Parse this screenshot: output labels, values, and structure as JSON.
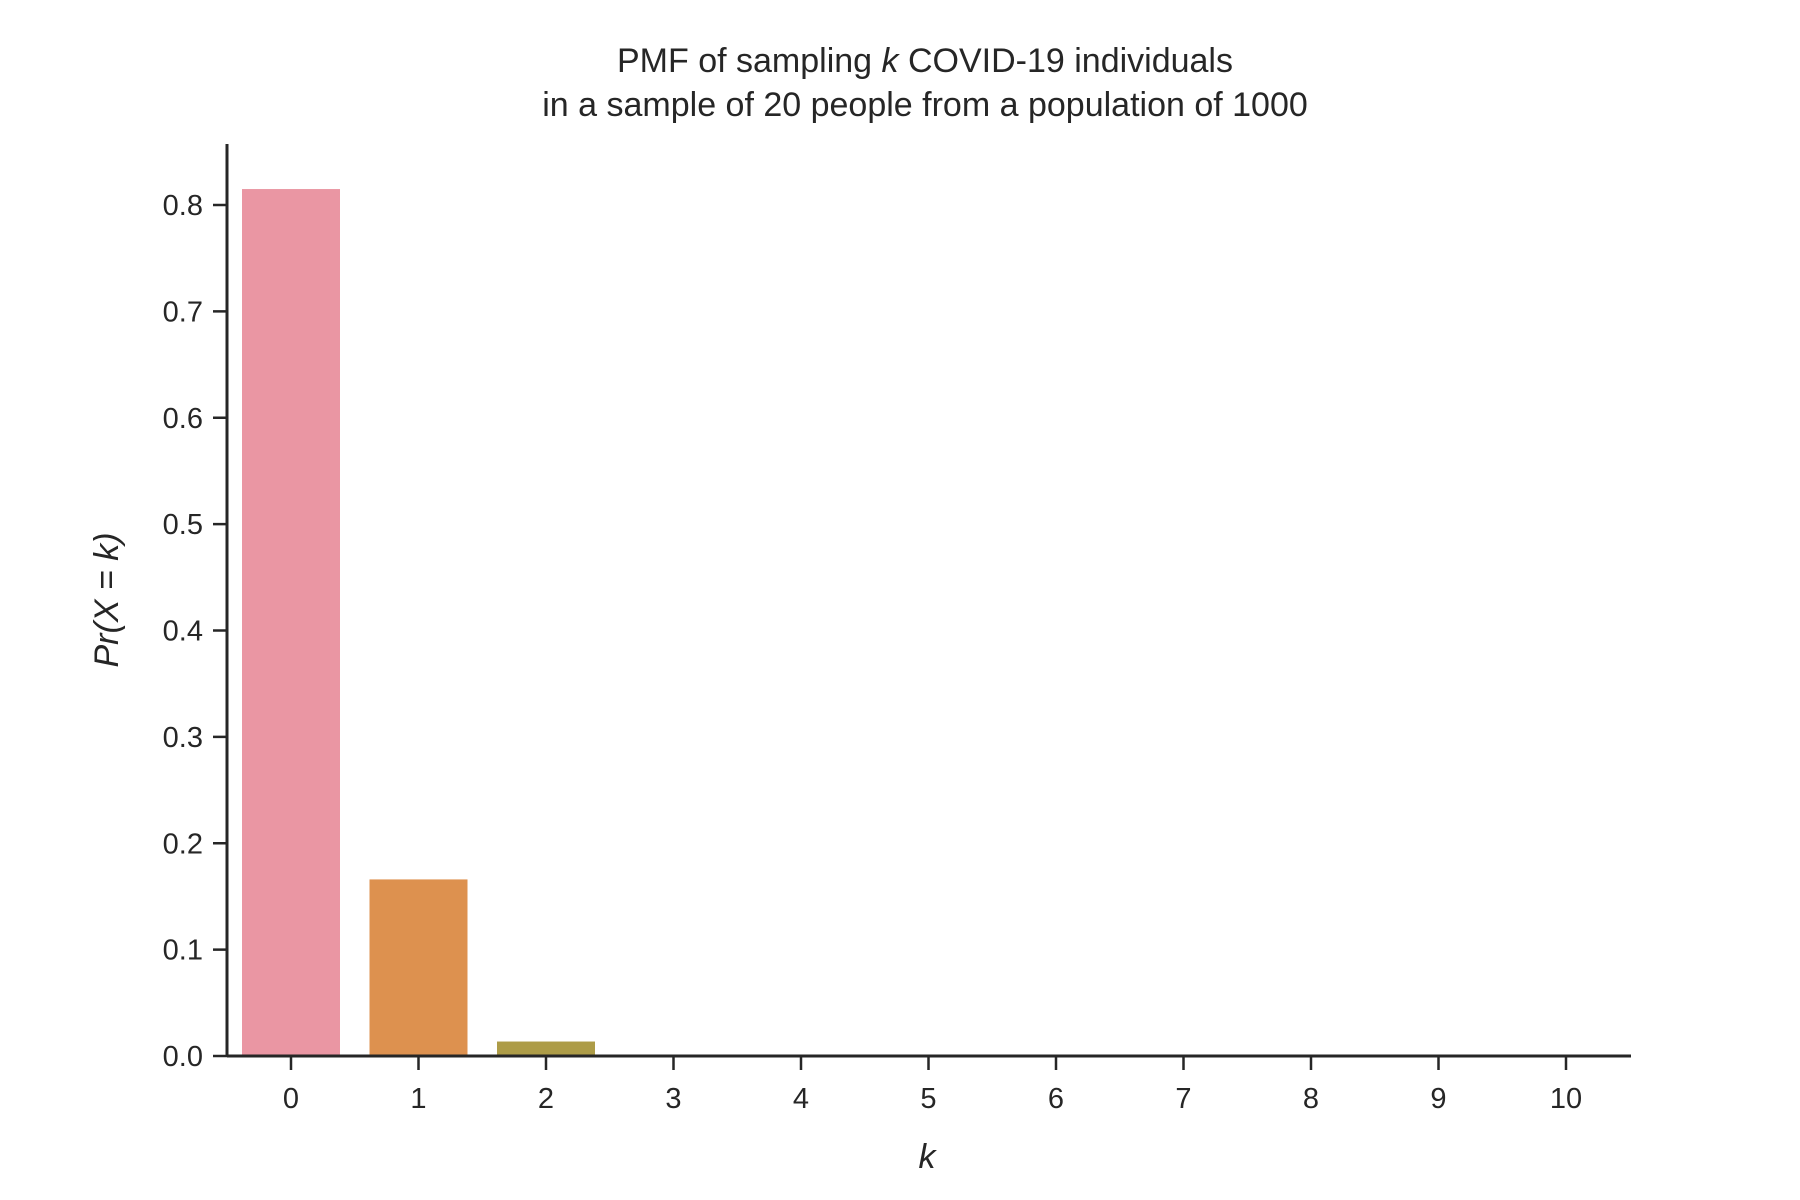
{
  "chart_data": {
    "type": "bar",
    "title_parts": [
      "PMF of sampling ",
      "k",
      " COVID-19 individuals"
    ],
    "title_line2": "in a sample of 20 people from a population of 1000",
    "xlabel": "k",
    "ylabel": "Pr(X = k)",
    "categories": [
      "0",
      "1",
      "2",
      "3",
      "4",
      "5",
      "6",
      "7",
      "8",
      "9",
      "10"
    ],
    "values": [
      0.815,
      0.166,
      0.0136,
      0.0006,
      2e-05,
      0,
      0,
      0,
      0,
      0,
      0
    ],
    "colors": [
      "#ea96a3",
      "#dd914f",
      "#ad9c47",
      "#8ea647",
      "#4fb049",
      "#50b08e",
      "#53ac9f",
      "#58a8b6",
      "#6aa6e0",
      "#a29ef0",
      "#e28ae4"
    ],
    "ylim": [
      0,
      0.86
    ],
    "yticks": [
      0.0,
      0.1,
      0.2,
      0.3,
      0.4,
      0.5,
      0.6,
      0.7,
      0.8
    ],
    "ytick_labels": [
      "0.0",
      "0.1",
      "0.2",
      "0.3",
      "0.4",
      "0.5",
      "0.6",
      "0.7",
      "0.8"
    ],
    "grid": false,
    "legend": "none"
  }
}
